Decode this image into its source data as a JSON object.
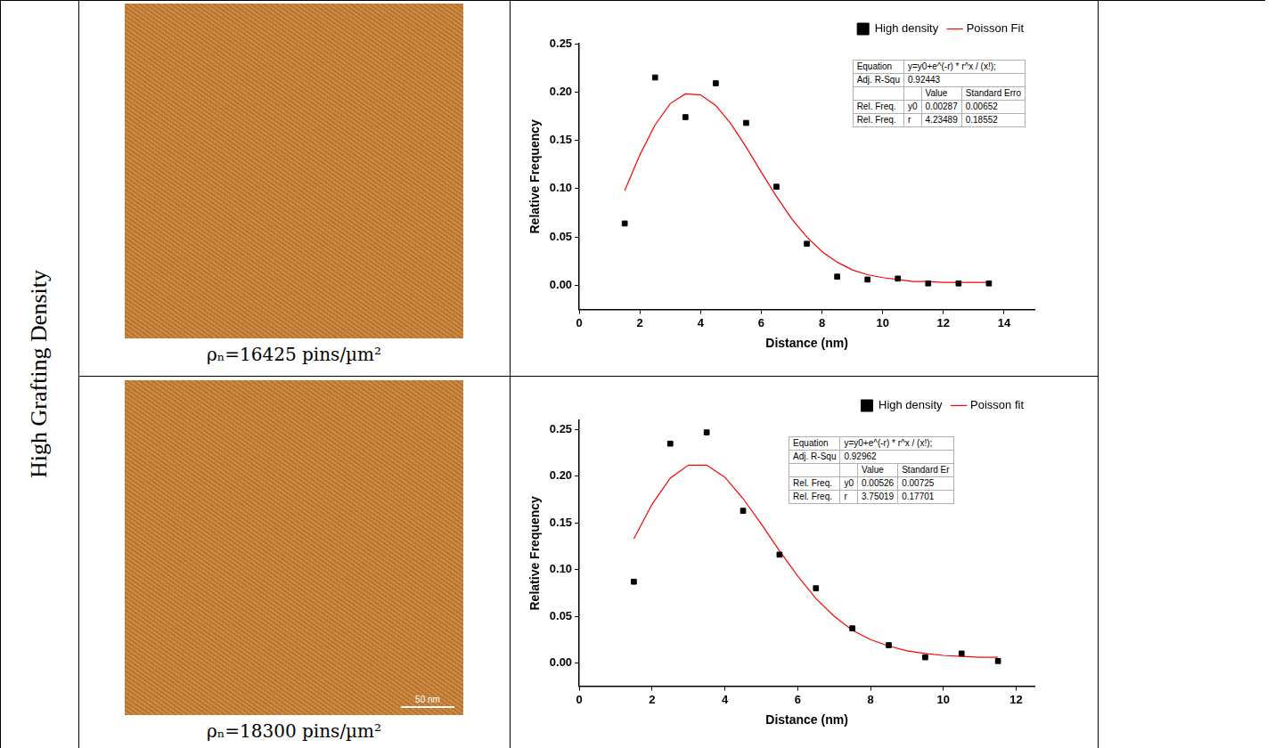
{
  "row_label": "High Grafting Density",
  "panels": [
    {
      "caption": "ρₙ=16425 pins/µm²"
    },
    {
      "caption": "ρₙ=18300 pins/µm²",
      "scale_bar": "50 nm"
    }
  ],
  "chart_data": [
    {
      "type": "scatter",
      "x_label": "Distance (nm)",
      "y_label": "Relative Frequency",
      "xlim": [
        0,
        15
      ],
      "xticks": [
        0,
        2,
        4,
        6,
        8,
        10,
        12,
        14
      ],
      "ylim": [
        -0.025,
        0.25
      ],
      "yticks": [
        {
          "value": 0,
          "label": "0.00"
        },
        {
          "value": 0.05,
          "label": "0.05"
        },
        {
          "value": 0.1,
          "label": "0.10"
        },
        {
          "value": 0.15,
          "label": "0.15"
        },
        {
          "value": 0.2,
          "label": "0.20"
        },
        {
          "value": 0.25,
          "label": "0.25"
        }
      ],
      "grid": false,
      "legend": "upper right",
      "series": [
        {
          "name": "High density",
          "type": "scatter",
          "marker": "square",
          "color": "#000000",
          "x": [
            1.5,
            2.5,
            3.5,
            4.5,
            5.5,
            6.5,
            7.5,
            8.5,
            9.5,
            10.5,
            11.5,
            12.5,
            13.5
          ],
          "values": [
            0.064,
            0.215,
            0.174,
            0.209,
            0.168,
            0.102,
            0.043,
            0.009,
            0.006,
            0.007,
            0.002,
            0.002,
            0.002
          ]
        },
        {
          "name": "Poisson Fit",
          "type": "line",
          "line_style": "solid",
          "color": "#ff0000",
          "x": [
            1.5,
            2,
            2.5,
            3,
            3.5,
            4,
            4.5,
            5,
            5.5,
            6,
            6.5,
            7,
            7.5,
            8,
            8.5,
            9,
            9.5,
            10,
            10.5,
            11,
            11.5,
            12,
            12.5,
            13,
            13.5
          ],
          "values": [
            0.098,
            0.135,
            0.166,
            0.188,
            0.198,
            0.197,
            0.186,
            0.167,
            0.143,
            0.117,
            0.092,
            0.069,
            0.05,
            0.035,
            0.024,
            0.016,
            0.011,
            0.008,
            0.006,
            0.004,
            0.004,
            0.003,
            0.003,
            0.003,
            0.003
          ]
        }
      ],
      "annotations": {
        "equation_label": "Equation",
        "equation": "y=y0+e^(-r) * r^x / (x!);",
        "r2_label": "Adj. R-Squ",
        "r2": "0.92443",
        "headers": [
          "Value",
          "Standard Erro"
        ],
        "rows": [
          {
            "label": "Rel. Freq.",
            "param": "y0",
            "value": "0.00287",
            "error": "0.00652"
          },
          {
            "label": "Rel. Freq.",
            "param": "r",
            "value": "4.23489",
            "error": "0.18552"
          }
        ]
      }
    },
    {
      "type": "scatter",
      "x_label": "Distance (nm)",
      "y_label": "Relative Frequency",
      "xlim": [
        0,
        12.5
      ],
      "xticks": [
        0,
        2,
        4,
        6,
        8,
        10,
        12
      ],
      "ylim": [
        -0.025,
        0.26
      ],
      "yticks": [
        {
          "value": 0,
          "label": "0.00"
        },
        {
          "value": 0.05,
          "label": "0.05"
        },
        {
          "value": 0.1,
          "label": "0.10"
        },
        {
          "value": 0.15,
          "label": "0.15"
        },
        {
          "value": 0.2,
          "label": "0.20"
        },
        {
          "value": 0.25,
          "label": "0.25"
        }
      ],
      "grid": false,
      "legend": "upper right",
      "series": [
        {
          "name": "High density",
          "type": "scatter",
          "marker": "square",
          "color": "#000000",
          "x": [
            1.5,
            2.5,
            3.5,
            4.5,
            5.5,
            6.5,
            7.5,
            8.5,
            9.5,
            10.5,
            11.5
          ],
          "values": [
            0.087,
            0.235,
            0.247,
            0.163,
            0.116,
            0.08,
            0.037,
            0.019,
            0.006,
            0.01,
            0.002
          ]
        },
        {
          "name": "Poisson fit",
          "type": "line",
          "line_style": "solid",
          "color": "#ff0000",
          "x": [
            1.5,
            2,
            2.5,
            3,
            3.5,
            4,
            4.5,
            5,
            5.5,
            6,
            6.5,
            7,
            7.5,
            8,
            8.5,
            9,
            9.5,
            10,
            10.5,
            11,
            11.5
          ],
          "values": [
            0.133,
            0.17,
            0.198,
            0.212,
            0.212,
            0.199,
            0.176,
            0.149,
            0.12,
            0.093,
            0.069,
            0.05,
            0.035,
            0.025,
            0.018,
            0.013,
            0.01,
            0.008,
            0.007,
            0.006,
            0.006
          ]
        }
      ],
      "annotations": {
        "equation_label": "Equation",
        "equation": "y=y0+e^(-r) * r^x / (x!);",
        "r2_label": "Adj. R-Squ",
        "r2": "0.92962",
        "headers": [
          "Value",
          "Standard Er"
        ],
        "rows": [
          {
            "label": "Rel. Freq.",
            "param": "y0",
            "value": "0.00526",
            "error": "0.00725"
          },
          {
            "label": "Rel. Freq.",
            "param": "r",
            "value": "3.75019",
            "error": "0.17701"
          }
        ]
      }
    }
  ]
}
